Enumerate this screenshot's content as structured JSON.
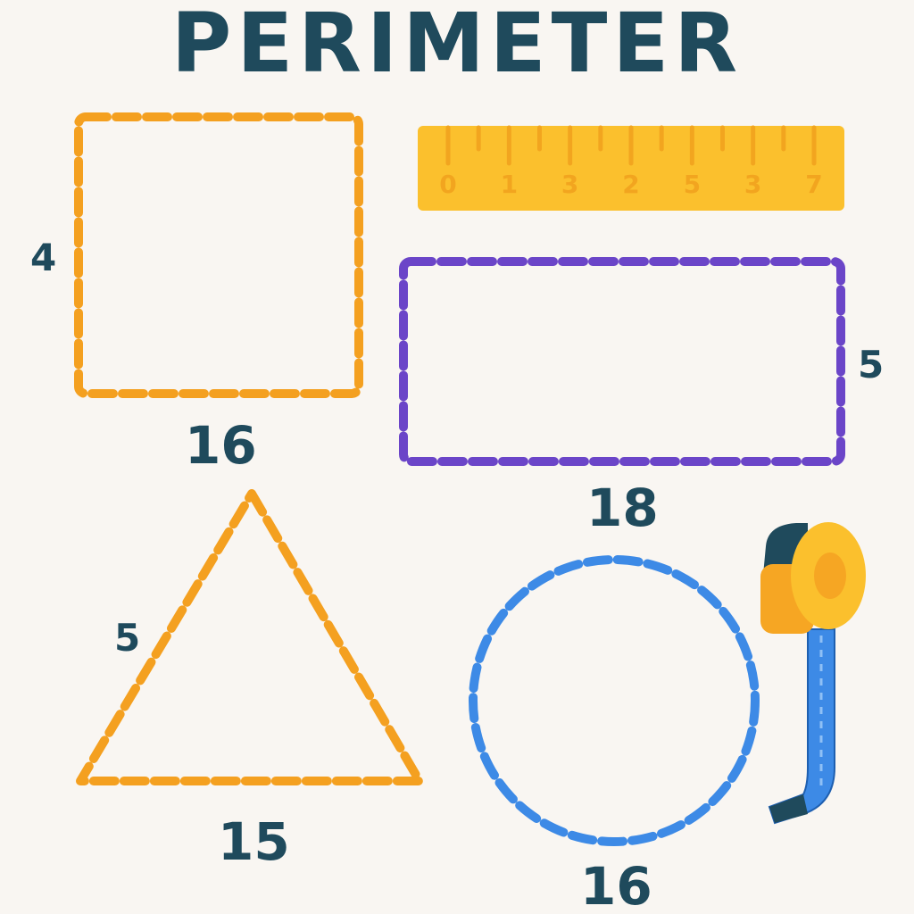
{
  "title": "PERIMETER",
  "shapes": {
    "square": {
      "side_label": "4",
      "perimeter_label": "16",
      "color": "#f4a020"
    },
    "rectangle": {
      "side_label": "5",
      "perimeter_label": "18",
      "color": "#6b45c8"
    },
    "triangle": {
      "side_label": "5",
      "perimeter_label": "15",
      "color": "#f4a020"
    },
    "circle": {
      "perimeter_label": "16",
      "color": "#3d8ae6"
    }
  },
  "ruler": {
    "numbers": [
      "0",
      "1",
      "3",
      "2",
      "5",
      "3",
      "7"
    ],
    "color": "#fbc02d"
  },
  "tape_measure": {
    "case_color": "#f6a623",
    "tape_color": "#3d8ae6"
  },
  "text_color": "#1f4a5c"
}
